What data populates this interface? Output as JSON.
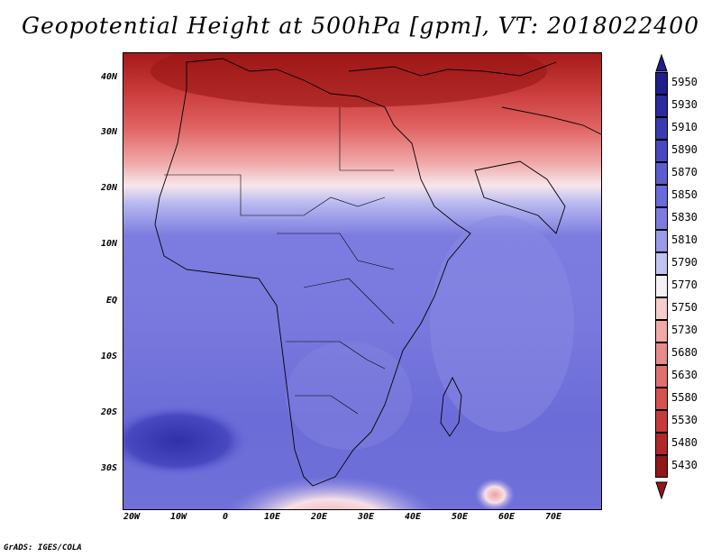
{
  "title": "Geopotential Height at 500hPa [gpm], VT: 2018022400",
  "footer": "GrADS: IGES/COLA",
  "lat_labels": [
    "40N",
    "30N",
    "20N",
    "10N",
    "EQ",
    "10S",
    "20S",
    "30S"
  ],
  "lon_labels": [
    "20W",
    "10W",
    "0",
    "10E",
    "20E",
    "30E",
    "40E",
    "50E",
    "60E",
    "70E"
  ],
  "colorbar": {
    "levels": [
      "5950",
      "5930",
      "5910",
      "5890",
      "5870",
      "5850",
      "5830",
      "5810",
      "5790",
      "5770",
      "5750",
      "5730",
      "5680",
      "5630",
      "5580",
      "5530",
      "5480",
      "5430"
    ],
    "colors": [
      "#1e1e8c",
      "#2b2ba0",
      "#3a3ab2",
      "#4848c0",
      "#5c5cd0",
      "#6a6ada",
      "#7c7ce0",
      "#9a9ae8",
      "#c2c2f2",
      "#f4f0f4",
      "#f7cccc",
      "#f0a8a8",
      "#e88a8a",
      "#e07070",
      "#d85050",
      "#c83a3a",
      "#b02828",
      "#901818"
    ]
  }
}
